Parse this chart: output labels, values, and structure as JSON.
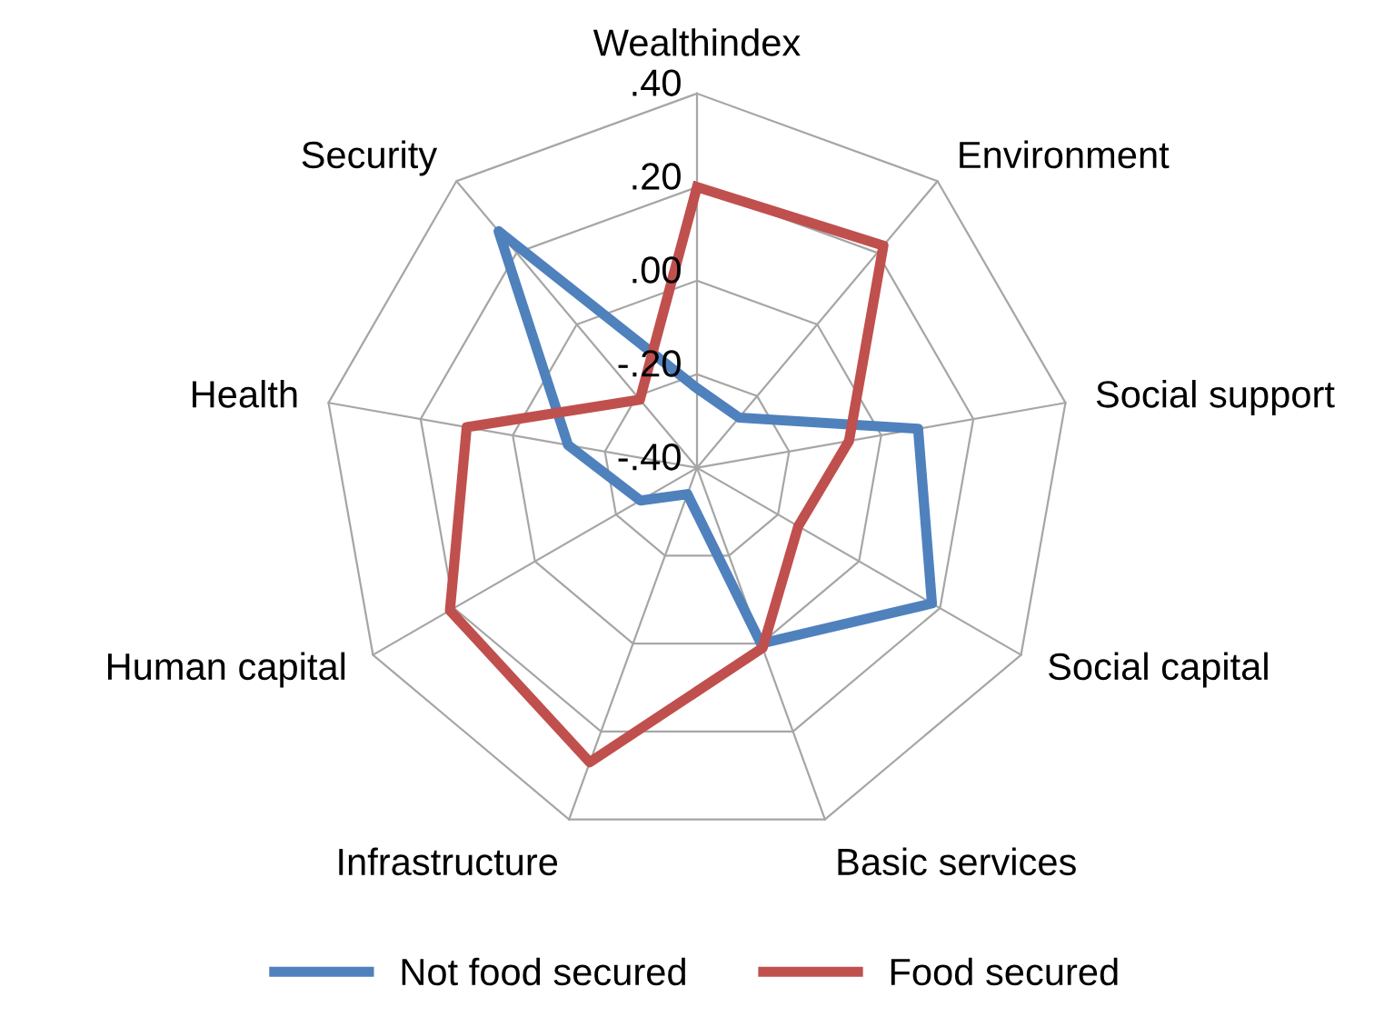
{
  "chart_data": {
    "type": "radar",
    "categories": [
      "Wealthindex",
      "Environment",
      "Social support",
      "Social capital",
      "Basic services",
      "Infrastructure",
      "Human capital",
      "Health",
      "Security"
    ],
    "series": [
      {
        "name": "Not food secured",
        "color": "#4f81bd",
        "values": [
          -0.23,
          -0.26,
          0.08,
          0.18,
          0.0,
          -0.34,
          -0.26,
          -0.12,
          0.26
        ]
      },
      {
        "name": "Food secured",
        "color": "#c0504d",
        "values": [
          0.2,
          0.22,
          -0.07,
          -0.15,
          0.01,
          0.27,
          0.21,
          0.1,
          -0.21
        ]
      }
    ],
    "ylim": [
      -0.4,
      0.4
    ],
    "yticks": [
      {
        "value": -0.4,
        "label": "-.40"
      },
      {
        "value": -0.2,
        "label": "-.20"
      },
      {
        "value": 0.0,
        "label": ".00"
      },
      {
        "value": 0.2,
        "label": ".20"
      },
      {
        "value": 0.4,
        "label": ".40"
      }
    ],
    "grid": true,
    "legend": "bottom",
    "marker": "none",
    "line_style": "solid"
  }
}
